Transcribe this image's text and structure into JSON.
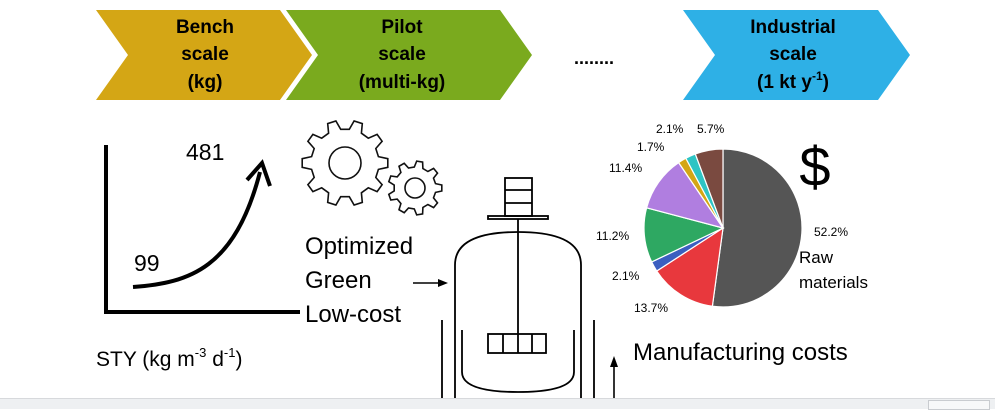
{
  "stages": [
    {
      "lines": [
        "Bench",
        "scale",
        "(kg)"
      ],
      "color": "#d4a615"
    },
    {
      "lines": [
        "Pilot",
        "scale",
        "(multi-kg)"
      ],
      "color": "#7aaa1e"
    },
    {
      "lines": [
        "Industrial",
        "scale",
        "(1 kt y",
        "-1",
        ")"
      ],
      "color": "#2eb0e6"
    }
  ],
  "ellipsis": "........",
  "sty": {
    "start_value": "99",
    "end_value": "481",
    "label_prefix": "STY (kg m",
    "label_exp1": "-3",
    "label_mid": " d",
    "label_exp2": "-1",
    "label_suffix": ")"
  },
  "process": {
    "attributes": [
      "Optimized",
      "Green",
      "Low-cost"
    ]
  },
  "costs": {
    "currency_symbol": "$",
    "title": "Manufacturing costs",
    "raw_label_line1": "Raw",
    "raw_label_line2": "materials"
  },
  "chart_data": {
    "type": "pie",
    "title": "",
    "slices": [
      {
        "label": "52.2%",
        "value": 52.2,
        "color": "#555555"
      },
      {
        "label": "13.7%",
        "value": 13.7,
        "color": "#e8383d"
      },
      {
        "label": "2.1%",
        "value": 2.1,
        "color": "#3b5fc0"
      },
      {
        "label": "11.2%",
        "value": 11.2,
        "color": "#2ea862"
      },
      {
        "label": "11.4%",
        "value": 11.4,
        "color": "#b07ee0"
      },
      {
        "label": "1.7%",
        "value": 1.7,
        "color": "#d4a615"
      },
      {
        "label": "2.1%",
        "value": 2.1,
        "color": "#2ec4c4"
      },
      {
        "label": "5.7%",
        "value": 5.7,
        "color": "#7a4a40"
      }
    ]
  }
}
